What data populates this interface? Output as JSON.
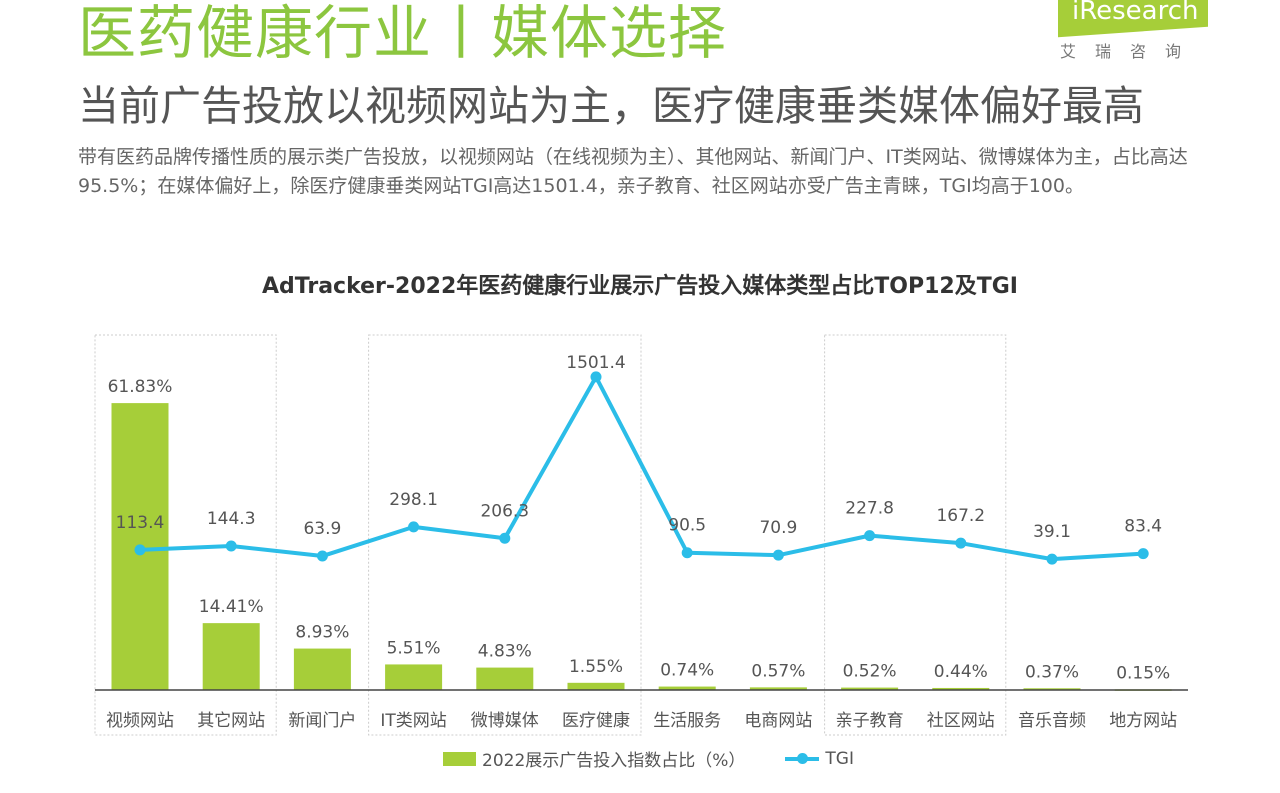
{
  "header": {
    "title": "医药健康行业丨媒体选择",
    "subtitle": "当前广告投放以视频网站为主，医疗健康垂类媒体偏好最高",
    "description": "带有医药品牌传播性质的展示类广告投放，以视频网站（在线视频为主）、其他网站、新闻门户、IT类网站、微博媒体为主，占比高达95.5%；在媒体偏好上，除医疗健康垂类网站TGI高达1501.4，亲子教育、社区网站亦受广告主青睐，TGI均高于100。"
  },
  "logo": {
    "brand": "iResearch",
    "cn": "艾瑞咨询"
  },
  "chart_data": {
    "type": "bar+line",
    "title": "AdTracker-2022年医药健康行业展示广告投入媒体类型占比TOP12及TGI",
    "categories": [
      "视频网站",
      "其它网站",
      "新闻门户",
      "IT类网站",
      "微博媒体",
      "医疗健康",
      "生活服务",
      "电商网站",
      "亲子教育",
      "社区网站",
      "音乐音频",
      "地方网站"
    ],
    "series": [
      {
        "name": "2022展示广告投入指数占比（%）",
        "type": "bar",
        "color": "#a6ce39",
        "values": [
          61.83,
          14.41,
          8.93,
          5.51,
          4.83,
          1.55,
          0.74,
          0.57,
          0.52,
          0.44,
          0.37,
          0.15
        ],
        "labels": [
          "61.83%",
          "14.41%",
          "8.93%",
          "5.51%",
          "4.83%",
          "1.55%",
          "0.74%",
          "0.57%",
          "0.52%",
          "0.44%",
          "0.37%",
          "0.15%"
        ]
      },
      {
        "name": "TGI",
        "type": "line",
        "color": "#2bbde8",
        "values": [
          113.4,
          144.3,
          63.9,
          298.1,
          206.3,
          1501.4,
          90.5,
          70.9,
          227.8,
          167.2,
          39.1,
          83.4
        ],
        "labels": [
          "113.4",
          "144.3",
          "63.9",
          "298.1",
          "206.3",
          "1501.4",
          "90.5",
          "70.9",
          "227.8",
          "167.2",
          "39.1",
          "83.4"
        ]
      }
    ],
    "highlight_groups": [
      [
        "视频网站",
        "其它网站"
      ],
      [
        "IT类网站",
        "微博媒体",
        "医疗健康"
      ],
      [
        "亲子教育",
        "社区网站"
      ]
    ],
    "legend": "bottom",
    "grid": false
  }
}
